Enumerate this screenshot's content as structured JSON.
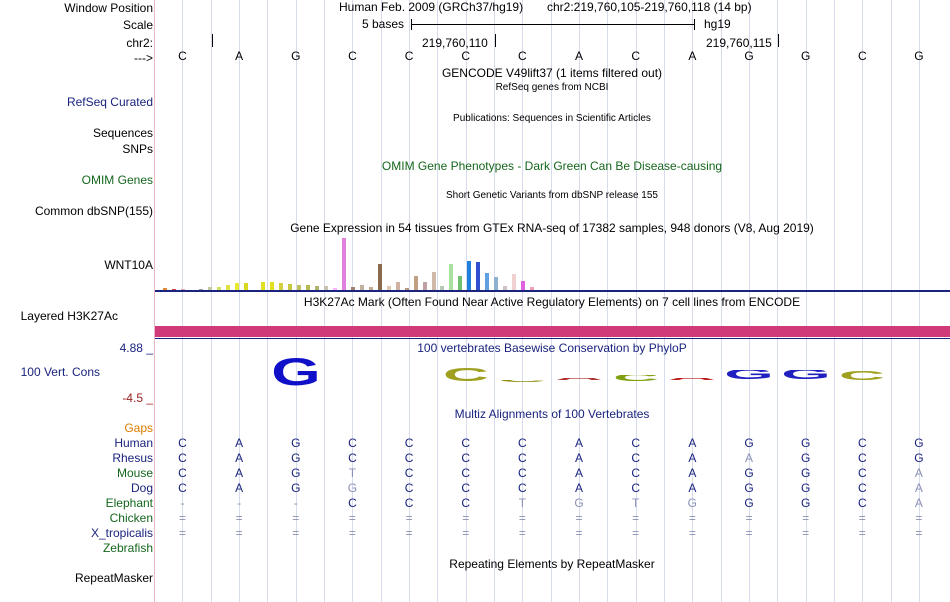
{
  "left_labels": {
    "window_position": "Window Position",
    "scale": "Scale",
    "chrom": "chr2:",
    "strand": "--->",
    "refseq": "RefSeq Curated",
    "sequences": "Sequences",
    "snps": "SNPs",
    "omim": "OMIM Genes",
    "dbsnp": "Common dbSNP(155)",
    "wnt10a": "WNT10A",
    "h3k27ac": "Layered H3K27Ac",
    "ymax": "4.88 _",
    "cons": "100 Vert. Cons",
    "ymin": "-4.5 _",
    "gaps": "Gaps",
    "repeatmasker": "RepeatMasker"
  },
  "header": {
    "assembly": "Human Feb. 2009 (GRCh37/hg19)",
    "position": "chr2:219,760,105-219,760,118 (14 bp)",
    "scale_label": "5 bases",
    "db": "hg19",
    "coord1": "219,760,110",
    "coord2": "219,760,115"
  },
  "sequence": [
    "C",
    "A",
    "G",
    "C",
    "C",
    "C",
    "C",
    "A",
    "C",
    "A",
    "G",
    "G",
    "C",
    "G"
  ],
  "tracks": {
    "gencode": "GENCODE V49lift37 (1 items filtered out)",
    "refseq": "RefSeq genes from NCBI",
    "publications": "Publications: Sequences in Scientific Articles",
    "omim": "OMIM Gene Phenotypes - Dark Green Can Be Disease-causing",
    "dbsnp": "Short Genetic Variants from dbSNP release 155",
    "gtex": "Gene Expression in 54 tissues from GTEx RNA-seq of 17382 samples, 948 donors (V8, Aug 2019)",
    "h3k27ac": "H3K27Ac Mark (Often Found Near Active Regulatory Elements) on 7 cell lines from ENCODE",
    "phylop": "100 vertebrates Basewise Conservation by PhyloP",
    "multiz": "Multiz Alignments of 100 Vertebrates",
    "repeatmasker": "Repeating Elements by RepeatMasker"
  },
  "gtex_bars": [
    2,
    1,
    1,
    0,
    1,
    3,
    3,
    5,
    7,
    7,
    0,
    8,
    8,
    7,
    6,
    5,
    5,
    4,
    4,
    2,
    52,
    3,
    5,
    3,
    26,
    4,
    8,
    2,
    14,
    8,
    18,
    4,
    26,
    14,
    29,
    28,
    17,
    13,
    4,
    16,
    9,
    3
  ],
  "gtex_colors": [
    "#e08a30",
    "#d24040",
    "#e0a0a0",
    "#ff8080",
    "#a0a0a0",
    "#c8c8a0",
    "#d8e060",
    "#e0e040",
    "#e8e830",
    "#d8d820",
    "#c0c050",
    "#e0e020",
    "#e0e020",
    "#d0d040",
    "#c8c840",
    "#c0c060",
    "#b8b850",
    "#b0b070",
    "#c8c0b0",
    "#ffb0ff",
    "#e080e0",
    "#a08070",
    "#c0b0a0",
    "#c8a890",
    "#8a6a4a",
    "#e0c8b0",
    "#d0b0a0",
    "#b89880",
    "#c0a080",
    "#c0a0a0",
    "#d0b8a8",
    "#b8c8b8",
    "#a8e0a0",
    "#70c070",
    "#2080e0",
    "#3050d0",
    "#60a0e0",
    "#90b0d0",
    "#d0c0c0",
    "#f0d0d0",
    "#e060e0",
    "#f0a0b0"
  ],
  "phylop_logos": [
    {
      "char": "G",
      "color": "#1010c8"
    },
    {
      "char": "C",
      "color": "#a0a020"
    },
    {
      "char": "C",
      "color": "#909010"
    },
    {
      "char": "A",
      "color": "#b03030"
    },
    {
      "char": "C",
      "color": "#80a010"
    },
    {
      "char": "A",
      "color": "#c02020"
    },
    {
      "char": "G",
      "color": "#2020c0"
    },
    {
      "char": "G",
      "color": "#2020c0"
    },
    {
      "char": "C",
      "color": "#a0a020"
    }
  ],
  "species": [
    {
      "name": "Human",
      "bases": [
        "C",
        "A",
        "G",
        "C",
        "C",
        "C",
        "C",
        "A",
        "C",
        "A",
        "G",
        "G",
        "C",
        "G"
      ]
    },
    {
      "name": "Rhesus",
      "bases": [
        "C",
        "A",
        "G",
        "C",
        "C",
        "C",
        "C",
        "A",
        "C",
        "A",
        "A",
        "G",
        "C",
        "G"
      ]
    },
    {
      "name": "Mouse",
      "bases": [
        "C",
        "A",
        "G",
        "T",
        "C",
        "C",
        "C",
        "A",
        "C",
        "A",
        "G",
        "G",
        "C",
        "A"
      ]
    },
    {
      "name": "Dog",
      "bases": [
        "C",
        "A",
        "G",
        "G",
        "C",
        "C",
        "C",
        "A",
        "C",
        "A",
        "G",
        "G",
        "C",
        "A"
      ]
    },
    {
      "name": "Elephant",
      "bases": [
        "-",
        "-",
        "-",
        "C",
        "C",
        "C",
        "T",
        "G",
        "T",
        "G",
        "G",
        "G",
        "C",
        "A"
      ]
    },
    {
      "name": "Chicken",
      "bases": [
        "=",
        "=",
        "=",
        "=",
        "=",
        "=",
        "=",
        "=",
        "=",
        "=",
        "=",
        "=",
        "=",
        "="
      ]
    },
    {
      "name": "X_tropicalis",
      "bases": [
        "=",
        "=",
        "=",
        "=",
        "=",
        "=",
        "=",
        "=",
        "=",
        "=",
        "=",
        "=",
        "=",
        "="
      ]
    },
    {
      "name": "Zebrafish",
      "bases": [
        "",
        "",
        "",
        "",
        "",
        "",
        "",
        "",
        "",
        "",
        "",
        "",
        "",
        ""
      ]
    }
  ],
  "colors": {
    "track_label": "#1a237e",
    "omim_green": "#15661c",
    "h3k27ac_band": "#d03a78",
    "gaps_orange": "#e07b00",
    "ymin_red": "#9a2020"
  }
}
